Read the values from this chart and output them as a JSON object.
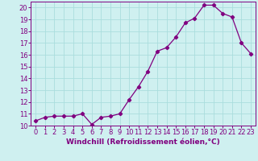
{
  "x": [
    0,
    1,
    2,
    3,
    4,
    5,
    6,
    7,
    8,
    9,
    10,
    11,
    12,
    13,
    14,
    15,
    16,
    17,
    18,
    19,
    20,
    21,
    22,
    23
  ],
  "y": [
    10.4,
    10.7,
    10.8,
    10.8,
    10.8,
    11.0,
    10.1,
    10.7,
    10.8,
    11.0,
    12.2,
    13.3,
    14.6,
    16.3,
    16.6,
    17.5,
    18.7,
    19.1,
    20.2,
    20.2,
    19.5,
    19.2,
    17.0,
    16.1
  ],
  "line_color": "#800080",
  "marker": "D",
  "marker_size": 2.2,
  "bg_color": "#cff0f0",
  "grid_color": "#aadddd",
  "xlabel": "Windchill (Refroidissement éolien,°C)",
  "ylabel": "",
  "xlim": [
    -0.5,
    23.5
  ],
  "ylim": [
    10,
    20.5
  ],
  "yticks": [
    10,
    11,
    12,
    13,
    14,
    15,
    16,
    17,
    18,
    19,
    20
  ],
  "xticks": [
    0,
    1,
    2,
    3,
    4,
    5,
    6,
    7,
    8,
    9,
    10,
    11,
    12,
    13,
    14,
    15,
    16,
    17,
    18,
    19,
    20,
    21,
    22,
    23
  ],
  "label_color": "#800080",
  "tick_color": "#800080",
  "spine_color": "#800080",
  "xlabel_fontsize": 6.5,
  "tick_fontsize": 6.0,
  "linewidth": 0.9
}
